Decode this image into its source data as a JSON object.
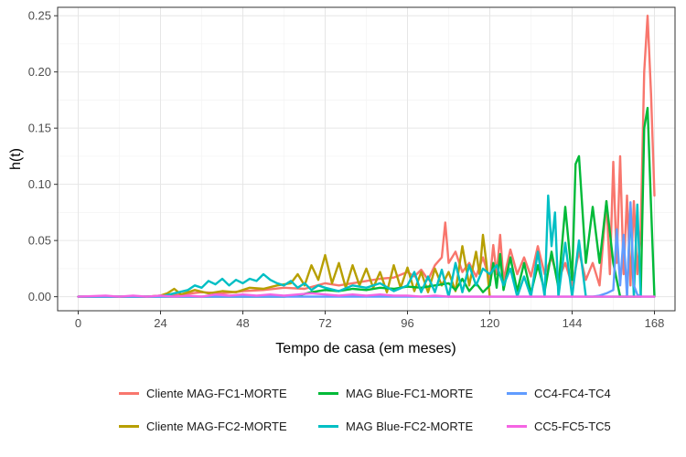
{
  "chart_data": {
    "type": "line",
    "xlabel": "Tempo de casa (em meses)",
    "ylabel": "h(t)",
    "xlim": [
      -6,
      174
    ],
    "ylim": [
      -0.0125,
      0.2575
    ],
    "xticks": [
      0,
      24,
      48,
      72,
      96,
      120,
      144,
      168
    ],
    "yticks": [
      0.0,
      0.05,
      0.1,
      0.15,
      0.2,
      0.25
    ],
    "ytick_labels": [
      "0.00",
      "0.05",
      "0.10",
      "0.15",
      "0.20",
      "0.25"
    ],
    "grid": true,
    "legend_position": "bottom",
    "series": [
      {
        "name": "Cliente MAG-FC1-MORTE",
        "color": "#F8766D",
        "x": [
          0,
          20,
          24,
          30,
          36,
          42,
          48,
          54,
          60,
          66,
          72,
          76,
          80,
          84,
          88,
          92,
          96,
          98,
          100,
          102,
          104,
          106,
          107,
          108,
          110,
          112,
          114,
          116,
          118,
          120,
          121,
          122,
          123,
          124,
          126,
          128,
          130,
          132,
          134,
          136,
          138,
          140,
          142,
          144,
          146,
          148,
          150,
          152,
          154,
          155,
          156,
          157,
          158,
          159,
          160,
          161,
          162,
          163,
          164,
          165,
          166,
          167,
          168
        ],
        "y": [
          0,
          0,
          0.001,
          0.002,
          0.004,
          0.003,
          0.005,
          0.006,
          0.008,
          0.007,
          0.012,
          0.01,
          0.012,
          0.014,
          0.016,
          0.017,
          0.022,
          0.018,
          0.024,
          0.015,
          0.028,
          0.035,
          0.066,
          0.03,
          0.04,
          0.022,
          0.03,
          0.018,
          0.035,
          0.014,
          0.046,
          0.02,
          0.055,
          0.015,
          0.042,
          0.02,
          0.035,
          0.018,
          0.045,
          0.02,
          0.035,
          0.015,
          0.03,
          0.01,
          0.04,
          0.015,
          0.03,
          0.01,
          0.085,
          0.02,
          0.12,
          0.03,
          0.125,
          0.02,
          0.09,
          0.01,
          0.085,
          0.02,
          0.06,
          0.2,
          0.25,
          0.18,
          0.09
        ]
      },
      {
        "name": "Cliente MAG-FC2-MORTE",
        "color": "#B79F00",
        "x": [
          0,
          20,
          24,
          26,
          28,
          30,
          34,
          38,
          42,
          46,
          50,
          54,
          58,
          62,
          64,
          66,
          68,
          70,
          72,
          74,
          76,
          78,
          80,
          82,
          84,
          86,
          88,
          90,
          92,
          94,
          96,
          98,
          100,
          102,
          104,
          106,
          108,
          110,
          112,
          114,
          116,
          117,
          118,
          119,
          120
        ],
        "y": [
          0,
          0,
          0.001,
          0.003,
          0.007,
          0.002,
          0.006,
          0.003,
          0.005,
          0.004,
          0.008,
          0.007,
          0.01,
          0.012,
          0.02,
          0.01,
          0.028,
          0.015,
          0.037,
          0.012,
          0.03,
          0.008,
          0.028,
          0.01,
          0.025,
          0.008,
          0.022,
          0.004,
          0.028,
          0.008,
          0.026,
          0.005,
          0.022,
          0.004,
          0.025,
          0.01,
          0.022,
          0.005,
          0.045,
          0.01,
          0.04,
          0.02,
          0.055,
          0.03,
          0.0
        ]
      },
      {
        "name": "MAG Blue-FC1-MORTE",
        "color": "#00BA38",
        "x": [
          0,
          60,
          64,
          68,
          72,
          76,
          80,
          84,
          88,
          92,
          96,
          100,
          104,
          108,
          110,
          112,
          114,
          116,
          118,
          120,
          121,
          122,
          123,
          124,
          126,
          128,
          130,
          132,
          134,
          136,
          138,
          140,
          142,
          144,
          145,
          146,
          148,
          150,
          152,
          154,
          156,
          158,
          160,
          162,
          164,
          165,
          166,
          167,
          168
        ],
        "y": [
          0,
          0,
          0.001,
          0.004,
          0.006,
          0.005,
          0.007,
          0.006,
          0.008,
          0.007,
          0.009,
          0.008,
          0.01,
          0.012,
          0.006,
          0.016,
          0.005,
          0.012,
          0.004,
          0.01,
          0.03,
          0.008,
          0.038,
          0.006,
          0.035,
          0.005,
          0.03,
          0.003,
          0.028,
          0.005,
          0.04,
          0.008,
          0.08,
          0.015,
          0.118,
          0.125,
          0.03,
          0.08,
          0.03,
          0.085,
          0.03,
          0.0,
          0.0,
          0.0,
          0.0,
          0.15,
          0.168,
          0.08,
          0.0
        ]
      },
      {
        "name": "MAG Blue-FC2-MORTE",
        "color": "#00BFC4",
        "x": [
          0,
          24,
          28,
          32,
          34,
          36,
          38,
          40,
          42,
          44,
          46,
          48,
          50,
          52,
          54,
          56,
          58,
          60,
          62,
          64,
          66,
          68,
          70,
          72,
          76,
          80,
          84,
          88,
          92,
          96,
          98,
          100,
          102,
          104,
          106,
          108,
          110,
          112,
          114,
          116,
          118,
          120,
          122,
          124,
          126,
          128,
          130,
          132,
          134,
          136,
          137,
          138,
          139,
          140,
          142,
          144,
          146,
          148,
          150,
          152,
          154,
          156,
          158,
          160,
          161,
          162,
          163,
          164
        ],
        "y": [
          0,
          0,
          0.003,
          0.006,
          0.01,
          0.008,
          0.014,
          0.011,
          0.016,
          0.01,
          0.015,
          0.012,
          0.016,
          0.014,
          0.02,
          0.015,
          0.012,
          0.01,
          0.014,
          0.008,
          0.012,
          0.006,
          0.01,
          0.008,
          0.005,
          0.01,
          0.008,
          0.012,
          0.005,
          0.01,
          0.022,
          0.004,
          0.018,
          0.004,
          0.024,
          0.0,
          0.03,
          0.004,
          0.028,
          0.01,
          0.025,
          0.02,
          0.028,
          0.01,
          0.025,
          0.0,
          0.018,
          0.0,
          0.04,
          0.0,
          0.09,
          0.045,
          0.075,
          0.0,
          0.048,
          0.0,
          0.05,
          0.0,
          0.0,
          0.0,
          0.0,
          0.0,
          0.0,
          0.0,
          0.08,
          0.0,
          0.082,
          0.0
        ]
      },
      {
        "name": "CC4-FC4-TC4",
        "color": "#619CFF",
        "x": [
          0,
          150,
          152,
          154,
          156,
          157,
          158,
          159,
          160,
          161,
          162,
          163,
          164,
          166,
          168
        ],
        "y": [
          0,
          0,
          0.001,
          0.003,
          0.006,
          0.06,
          0.01,
          0.055,
          0.0,
          0.084,
          0.01,
          0.002,
          0.0,
          0.0,
          0.0
        ]
      },
      {
        "name": "CC5-FC5-TC5",
        "color": "#F564E3",
        "x": [
          0,
          8,
          12,
          16,
          20,
          24,
          28,
          32,
          36,
          40,
          44,
          48,
          52,
          56,
          60,
          64,
          68,
          72,
          76,
          80,
          84,
          88,
          92,
          96,
          100,
          104,
          108,
          112,
          116,
          120,
          130,
          140,
          150,
          160,
          168
        ],
        "y": [
          0,
          0.001,
          0.0,
          0.001,
          0.0,
          0.001,
          0.0,
          0.001,
          0.0,
          0.002,
          0.001,
          0.002,
          0.001,
          0.002,
          0.001,
          0.002,
          0.003,
          0.002,
          0.001,
          0.002,
          0.001,
          0.002,
          0.001,
          0.001,
          0.0,
          0.001,
          0.0,
          0.0,
          0.0,
          0.0,
          0.0,
          0.0,
          0.0,
          0.0,
          0.0
        ]
      }
    ]
  }
}
